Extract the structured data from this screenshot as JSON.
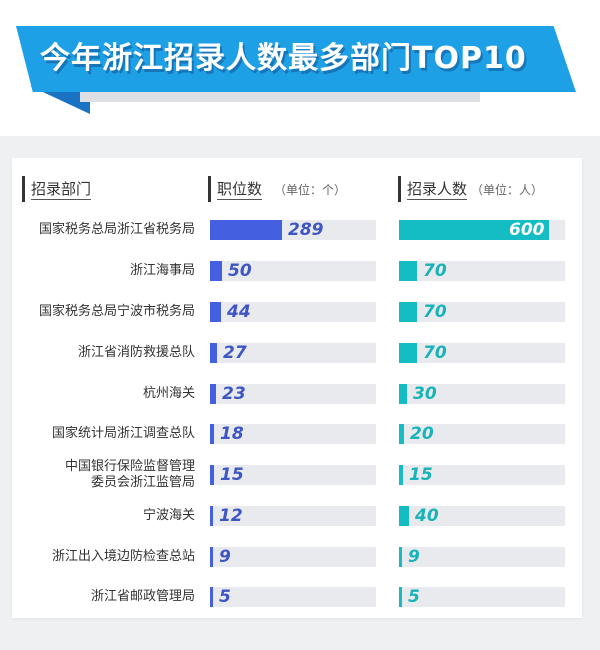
{
  "title": "今年浙江招录人数最多部门TOP10",
  "colors": {
    "banner": "#1ea0e6",
    "banner_fold": "#1a73c2",
    "jobs_bar": "#4460e0",
    "hires_bar": "#14bcc4",
    "track": "#e9eaee"
  },
  "headers": {
    "department": "招录部门",
    "jobs": "职位数",
    "jobs_unit": "（单位：个）",
    "hires": "招录人数",
    "hires_unit": "（单位：人）"
  },
  "rows": [
    {
      "label": "国家税务总局浙江省税务局",
      "jobs": "289",
      "hires": "600"
    },
    {
      "label": "浙江海事局",
      "jobs": "50",
      "hires": "70"
    },
    {
      "label": "国家税务总局宁波市税务局",
      "jobs": "44",
      "hires": "70"
    },
    {
      "label": "浙江省消防救援总队",
      "jobs": "27",
      "hires": "70"
    },
    {
      "label": "杭州海关",
      "jobs": "23",
      "hires": "30"
    },
    {
      "label": "国家统计局浙江调查总队",
      "jobs": "18",
      "hires": "20"
    },
    {
      "label": "中国银行保险监督管理委员会浙江监管局",
      "label_line1": "中国银行保险监督管理",
      "label_line2": "委员会浙江监管局",
      "jobs": "15",
      "hires": "15"
    },
    {
      "label": "宁波海关",
      "jobs": "12",
      "hires": "40"
    },
    {
      "label": "浙江出入境边防检查总站",
      "jobs": "9",
      "hires": "9"
    },
    {
      "label": "浙江省邮政管理局",
      "jobs": "5",
      "hires": "5"
    }
  ],
  "chart_data": {
    "type": "bar",
    "title": "今年浙江招录人数最多部门TOP10",
    "orientation": "horizontal",
    "categories": [
      "国家税务总局浙江省税务局",
      "浙江海事局",
      "国家税务总局宁波市税务局",
      "浙江省消防救援总队",
      "杭州海关",
      "国家统计局浙江调查总队",
      "中国银行保险监督管理委员会浙江监管局",
      "宁波海关",
      "浙江出入境边防检查总站",
      "浙江省邮政管理局"
    ],
    "series": [
      {
        "name": "职位数（单位：个）",
        "values": [
          289,
          50,
          44,
          27,
          23,
          18,
          15,
          12,
          9,
          5
        ],
        "color": "#4460e0"
      },
      {
        "name": "招录人数（单位：人）",
        "values": [
          600,
          70,
          70,
          70,
          30,
          20,
          15,
          40,
          9,
          5
        ],
        "color": "#14bcc4"
      }
    ],
    "xlabel": "",
    "ylabel": "招录部门",
    "grid": false,
    "legend": "column headers at top"
  }
}
